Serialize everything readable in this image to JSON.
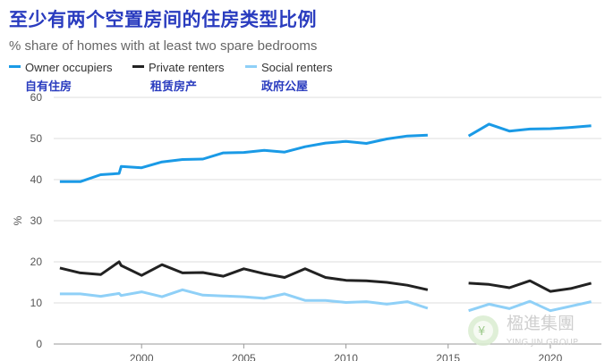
{
  "page": {
    "title": "至少有两个空置房间的住房类型比例",
    "subtitle": "% share of homes with at least two spare bedrooms"
  },
  "colors": {
    "owner": "#1a9ae6",
    "private": "#222222",
    "social": "#8fd0f7",
    "title": "#2a3cbf",
    "grid": "#dddddd"
  },
  "chart_data": {
    "type": "line",
    "title": "至少有两个空置房间的住房类型比例",
    "subtitle": "% share of homes with at least two spare bedrooms",
    "ylabel": "%",
    "xlim": [
      1995.7,
      2022.5
    ],
    "ylim": [
      0,
      60
    ],
    "yticks": [
      0,
      10,
      20,
      30,
      40,
      50,
      60
    ],
    "xticks": [
      2000,
      2005,
      2010,
      2015,
      2020
    ],
    "grid": true,
    "legend_position": "top-left",
    "series": [
      {
        "key": "owner",
        "name": "Owner occupiers",
        "name_cn": "自有住房",
        "segments": [
          [
            [
              1996,
              39.5
            ],
            [
              1997,
              39.5
            ],
            [
              1998,
              41.2
            ],
            [
              1998.9,
              41.5
            ],
            [
              1999,
              43.2
            ],
            [
              2000,
              42.9
            ],
            [
              2001,
              44.3
            ],
            [
              2002,
              44.9
            ],
            [
              2003,
              45
            ],
            [
              2004,
              46.5
            ],
            [
              2005,
              46.6
            ],
            [
              2006,
              47.1
            ],
            [
              2007,
              46.7
            ],
            [
              2008,
              48
            ],
            [
              2009,
              48.9
            ],
            [
              2010,
              49.3
            ],
            [
              2011,
              48.8
            ],
            [
              2012,
              49.9
            ],
            [
              2013,
              50.6
            ],
            [
              2014,
              50.8
            ]
          ],
          [
            [
              2016,
              50.6
            ],
            [
              2017,
              53.5
            ],
            [
              2018,
              51.8
            ],
            [
              2019,
              52.3
            ],
            [
              2020,
              52.4
            ],
            [
              2021,
              52.7
            ],
            [
              2022,
              53.1
            ]
          ]
        ]
      },
      {
        "key": "private",
        "name": "Private renters",
        "name_cn": "租赁房产",
        "segments": [
          [
            [
              1996,
              18.5
            ],
            [
              1997,
              17.3
            ],
            [
              1998,
              16.9
            ],
            [
              1998.9,
              20
            ],
            [
              1999,
              19.1
            ],
            [
              2000,
              16.7
            ],
            [
              2001,
              19.3
            ],
            [
              2002,
              17.3
            ],
            [
              2003,
              17.4
            ],
            [
              2004,
              16.5
            ],
            [
              2005,
              18.3
            ],
            [
              2006,
              17.1
            ],
            [
              2007,
              16.2
            ],
            [
              2008,
              18.3
            ],
            [
              2009,
              16.2
            ],
            [
              2010,
              15.5
            ],
            [
              2011,
              15.4
            ],
            [
              2012,
              15
            ],
            [
              2013,
              14.3
            ],
            [
              2014,
              13.2
            ]
          ],
          [
            [
              2016,
              14.8
            ],
            [
              2017,
              14.5
            ],
            [
              2018,
              13.7
            ],
            [
              2019,
              15.4
            ],
            [
              2020,
              12.8
            ],
            [
              2021,
              13.5
            ],
            [
              2022,
              14.8
            ]
          ]
        ]
      },
      {
        "key": "social",
        "name": "Social renters",
        "name_cn": "政府公屋",
        "segments": [
          [
            [
              1996,
              12.2
            ],
            [
              1997,
              12.2
            ],
            [
              1998,
              11.6
            ],
            [
              1998.9,
              12.3
            ],
            [
              1999,
              11.8
            ],
            [
              2000,
              12.7
            ],
            [
              2001,
              11.5
            ],
            [
              2002,
              13.2
            ],
            [
              2003,
              11.9
            ],
            [
              2004,
              11.7
            ],
            [
              2005,
              11.5
            ],
            [
              2006,
              11.1
            ],
            [
              2007,
              12.2
            ],
            [
              2008,
              10.6
            ],
            [
              2009,
              10.6
            ],
            [
              2010,
              10.1
            ],
            [
              2011,
              10.3
            ],
            [
              2012,
              9.7
            ],
            [
              2013,
              10.3
            ],
            [
              2014,
              8.7
            ]
          ],
          [
            [
              2016,
              8.1
            ],
            [
              2017,
              9.7
            ],
            [
              2018,
              8.6
            ],
            [
              2019,
              10.4
            ],
            [
              2020,
              8.1
            ],
            [
              2021,
              9.2
            ],
            [
              2022,
              10.3
            ]
          ]
        ]
      }
    ]
  },
  "watermark": {
    "brand_cn": "楹進集團",
    "brand_en": "YING JIN GROUP"
  }
}
